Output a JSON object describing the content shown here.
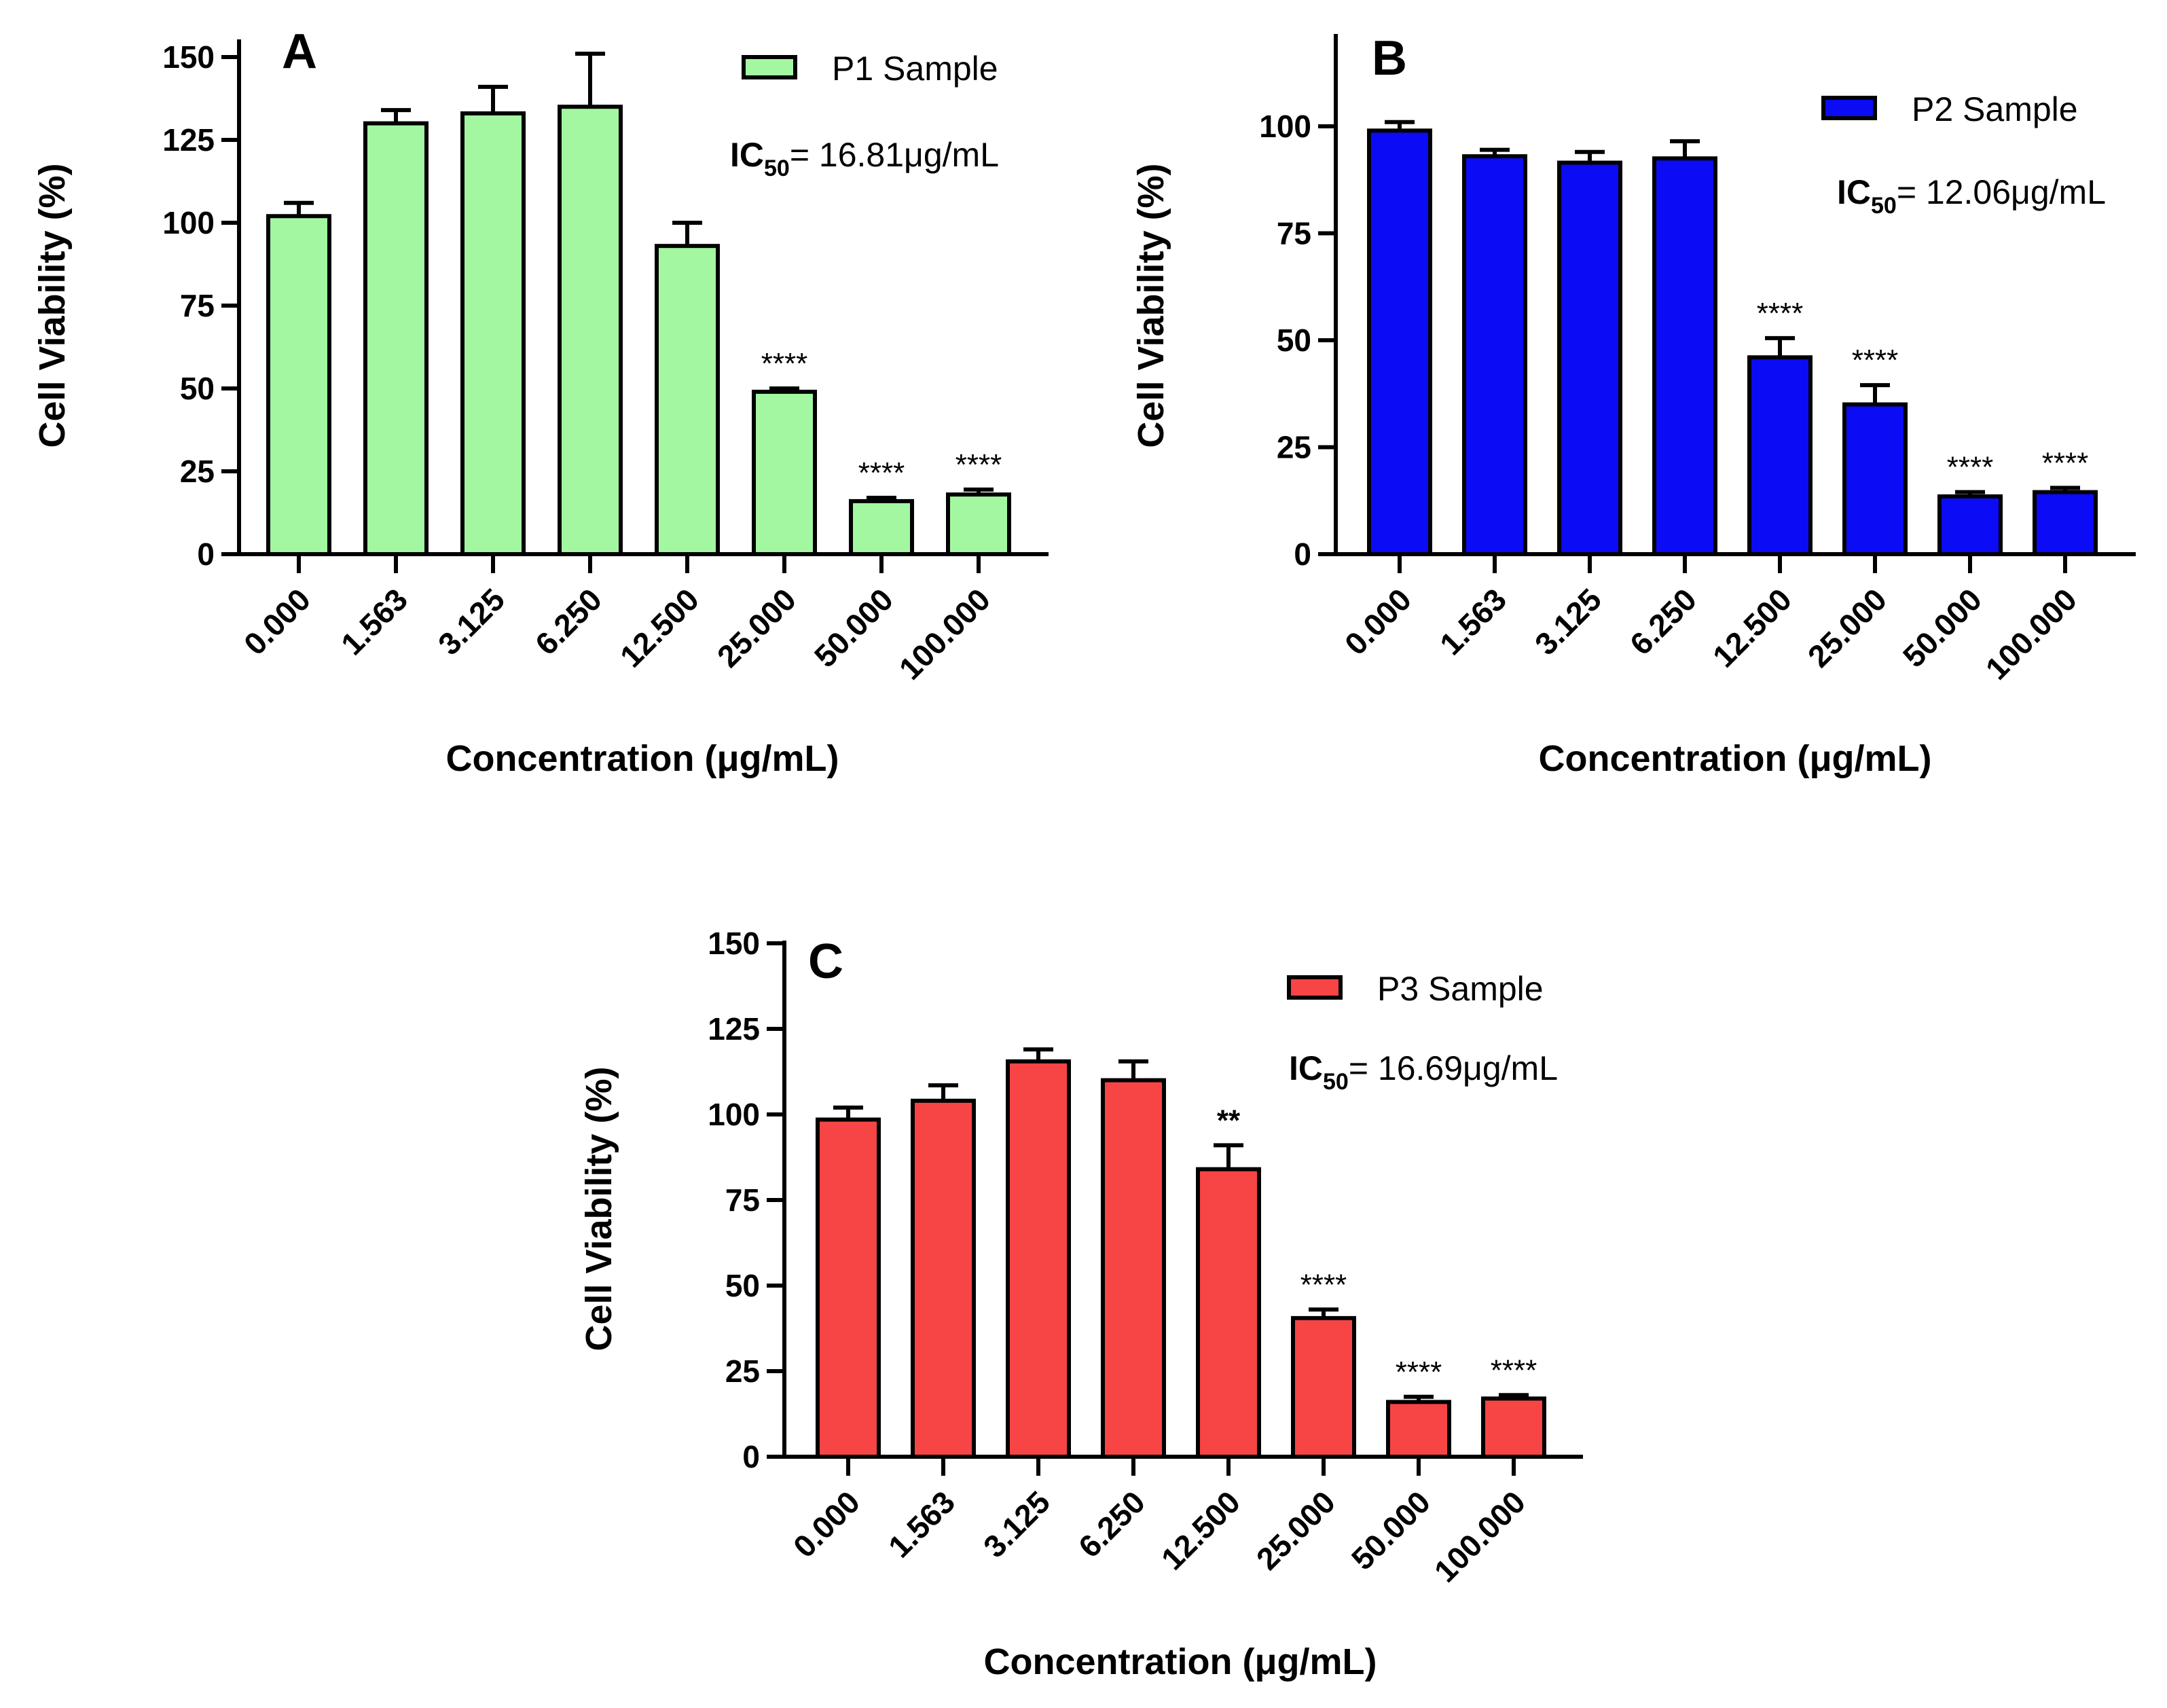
{
  "chart_data": [
    {
      "type": "bar",
      "panel": "A",
      "title": "",
      "legend": "P1 Sample",
      "legend_position": "top-right",
      "annotation_prefix": "IC",
      "annotation_sub": "50",
      "annotation_value": "= 16.81μg/mL",
      "color": "#a3f7a0",
      "xlabel": "Concentration (μg/mL)",
      "ylabel": "Cell Viability (%)",
      "ylim": [
        0,
        155
      ],
      "yticks": [
        0,
        25,
        50,
        75,
        100,
        125,
        150
      ],
      "categories": [
        "0.000",
        "1.563",
        "3.125",
        "6.250",
        "12.500",
        "25.000",
        "50.000",
        "100.000"
      ],
      "values": [
        102,
        130,
        133,
        135,
        93,
        49,
        16,
        18
      ],
      "error_upper": [
        106,
        134,
        141,
        151,
        100,
        50,
        17,
        19.5
      ],
      "significance": [
        "",
        "",
        "",
        "",
        "",
        "****",
        "****",
        "****"
      ]
    },
    {
      "type": "bar",
      "panel": "B",
      "title": "",
      "legend": "P2 Sample",
      "legend_position": "top-right",
      "annotation_prefix": "IC",
      "annotation_sub": "50",
      "annotation_value": "= 12.06μg/mL",
      "color": "#0b0bf5",
      "xlabel": "Concentration (μg/mL)",
      "ylabel": "Cell Viability (%)",
      "ylim": [
        0,
        122
      ],
      "yticks": [
        0,
        25,
        50,
        75,
        100
      ],
      "categories": [
        "0.000",
        "1.563",
        "3.125",
        "6.250",
        "12.500",
        "25.000",
        "50.000",
        "100.000"
      ],
      "values": [
        99,
        93,
        91.5,
        92.5,
        46,
        35,
        13.5,
        14.5
      ],
      "error_upper": [
        101,
        94.5,
        94,
        96.5,
        50.5,
        39.5,
        14.5,
        15.5
      ],
      "significance": [
        "",
        "",
        "",
        "",
        "****",
        "****",
        "****",
        "****"
      ]
    },
    {
      "type": "bar",
      "panel": "C",
      "title": "",
      "legend": "P3 Sample",
      "legend_position": "top-right",
      "annotation_prefix": "IC",
      "annotation_sub": "50",
      "annotation_value": "= 16.69μg/mL",
      "color": "#f74444",
      "xlabel": "Concentration (μg/mL)",
      "ylabel": "Cell Viability (%)",
      "ylim": [
        0,
        150
      ],
      "yticks": [
        0,
        25,
        50,
        75,
        100,
        125,
        150
      ],
      "categories": [
        "0.000",
        "1.563",
        "3.125",
        "6.250",
        "12.500",
        "25.000",
        "50.000",
        "100.000"
      ],
      "values": [
        98.5,
        104,
        115.5,
        110,
        84,
        40.5,
        16,
        17
      ],
      "error_upper": [
        102,
        108.5,
        119,
        115.5,
        91,
        43,
        17.5,
        18
      ],
      "significance": [
        "",
        "",
        "",
        "",
        "**",
        "****",
        "****",
        "****"
      ]
    }
  ]
}
